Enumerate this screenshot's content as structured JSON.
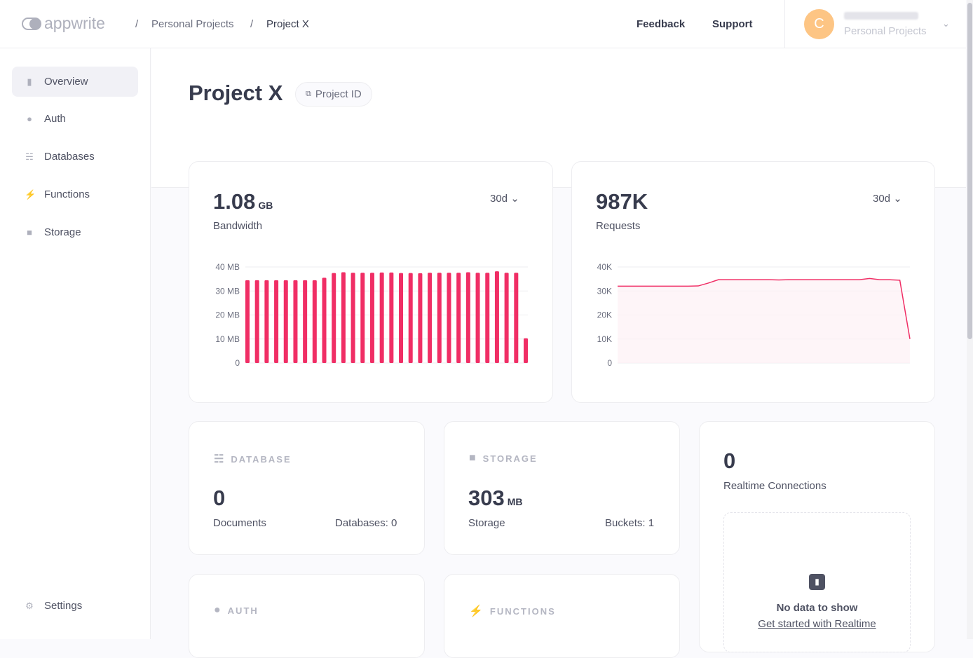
{
  "header": {
    "logo": "appwrite",
    "breadcrumb": [
      "Personal Projects",
      "Project X"
    ],
    "feedback": "Feedback",
    "support": "Support",
    "avatar_initial": "C",
    "organization": "Personal Projects"
  },
  "sidebar": {
    "items": [
      {
        "label": "Overview",
        "icon": "bar-chart-icon",
        "active": true
      },
      {
        "label": "Auth",
        "icon": "users-icon"
      },
      {
        "label": "Databases",
        "icon": "database-icon"
      },
      {
        "label": "Functions",
        "icon": "lightning-icon"
      },
      {
        "label": "Storage",
        "icon": "folder-icon"
      }
    ],
    "settings": "Settings"
  },
  "page": {
    "title": "Project X",
    "project_id_label": "Project ID"
  },
  "bandwidth": {
    "value": "1.08",
    "unit": "GB",
    "label": "Bandwidth",
    "range": "30d"
  },
  "requests": {
    "value": "987K",
    "label": "Requests",
    "range": "30d"
  },
  "database": {
    "caption": "DATABASE",
    "value": "0",
    "label": "Documents",
    "meta": "Databases: 0"
  },
  "storage": {
    "caption": "STORAGE",
    "value": "303",
    "unit": "MB",
    "label": "Storage",
    "meta": "Buckets: 1"
  },
  "realtime": {
    "value": "0",
    "label": "Realtime Connections",
    "empty_title": "No data to show",
    "empty_link": "Get started with Realtime"
  },
  "auth": {
    "caption": "AUTH"
  },
  "functions": {
    "caption": "FUNCTIONS"
  },
  "colors": {
    "accent": "#f02e65",
    "avatar": "#fdc584"
  },
  "chart_data": [
    {
      "type": "bar",
      "ylim": [
        0,
        40
      ],
      "yticks": [
        "0",
        "10 MB",
        "20 MB",
        "30 MB",
        "40 MB"
      ],
      "unit": "MB",
      "values": [
        34.5,
        34.5,
        34.5,
        34.5,
        34.5,
        34.5,
        34.5,
        34.5,
        35.5,
        37.5,
        37.8,
        37.6,
        37.6,
        37.6,
        37.7,
        37.7,
        37.5,
        37.5,
        37.4,
        37.6,
        37.6,
        37.6,
        37.6,
        37.8,
        37.6,
        37.6,
        38.2,
        37.6,
        37.6,
        10.3
      ]
    },
    {
      "type": "area",
      "ylim": [
        0,
        40
      ],
      "yticks": [
        "0",
        "10K",
        "20K",
        "30K",
        "40K"
      ],
      "unit": "K",
      "values": [
        32,
        32,
        32,
        32,
        32,
        32,
        32,
        32,
        32.1,
        33.3,
        34.7,
        34.7,
        34.7,
        34.7,
        34.7,
        34.7,
        34.6,
        34.7,
        34.7,
        34.7,
        34.7,
        34.7,
        34.7,
        34.7,
        34.7,
        35.2,
        34.7,
        34.7,
        34.5,
        10
      ]
    }
  ]
}
